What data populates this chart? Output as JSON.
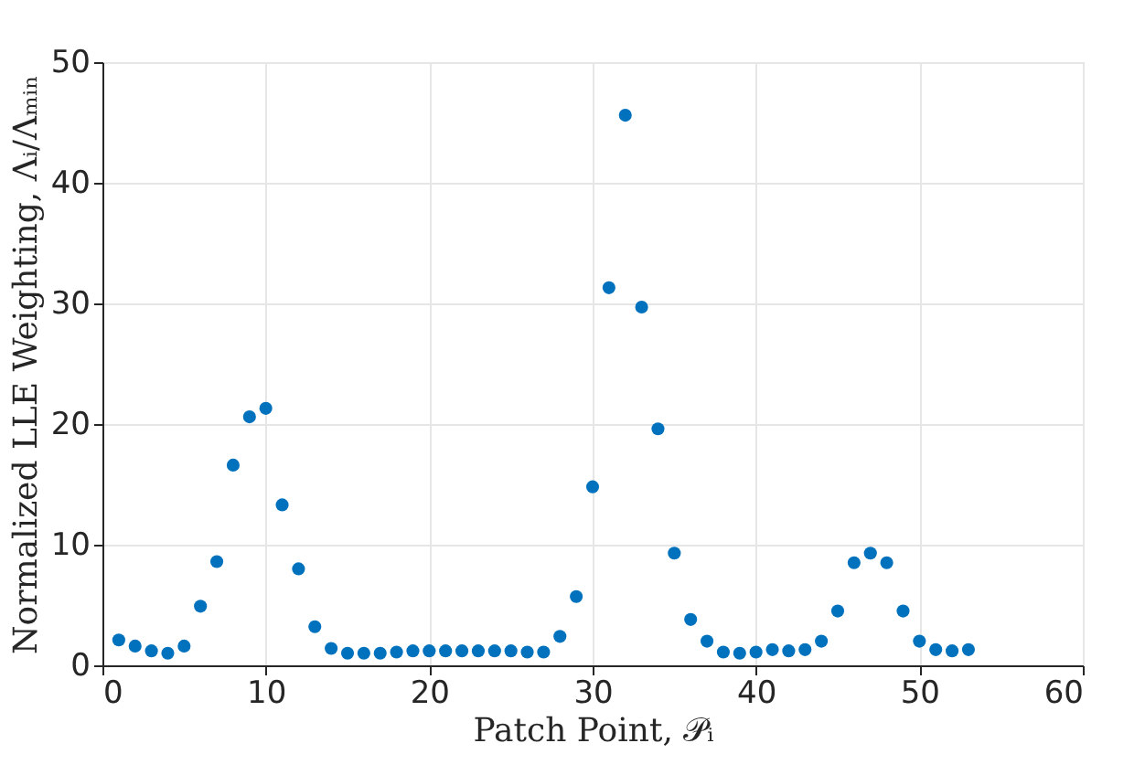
{
  "chart_data": {
    "type": "scatter",
    "xlabel": "Patch Point, 𝒫ᵢ",
    "ylabel": "Normalized LLE Weighting, Λᵢ/Λₘᵢₙ",
    "x": [
      1,
      2,
      3,
      4,
      5,
      6,
      7,
      8,
      9,
      10,
      11,
      12,
      13,
      14,
      15,
      16,
      17,
      18,
      19,
      20,
      21,
      22,
      23,
      24,
      25,
      26,
      27,
      28,
      29,
      30,
      31,
      32,
      33,
      34,
      35,
      36,
      37,
      38,
      39,
      40,
      41,
      42,
      43,
      44,
      45,
      46,
      47,
      48,
      49,
      50,
      51,
      52,
      53
    ],
    "series": [
      {
        "color": "#0072bd",
        "values": [
          2.1,
          1.6,
          1.2,
          1.0,
          1.6,
          4.9,
          8.6,
          16.6,
          20.6,
          21.3,
          13.3,
          8.0,
          3.2,
          1.4,
          1.0,
          1.0,
          1.0,
          1.1,
          1.2,
          1.2,
          1.2,
          1.2,
          1.2,
          1.2,
          1.2,
          1.1,
          1.1,
          2.4,
          5.7,
          14.8,
          31.3,
          45.6,
          29.7,
          19.6,
          9.3,
          3.8,
          2.0,
          1.1,
          1.0,
          1.1,
          1.3,
          1.2,
          1.3,
          2.0,
          4.5,
          8.5,
          9.3,
          8.5,
          4.5,
          2.0,
          1.3,
          1.2,
          1.3
        ]
      }
    ],
    "xlim": [
      0,
      60
    ],
    "xticks": [
      0,
      10,
      20,
      30,
      40,
      50,
      60
    ],
    "ylim": [
      0,
      50
    ],
    "yticks": [
      0,
      10,
      20,
      30,
      40,
      50
    ],
    "grid": true,
    "marker": "circle"
  }
}
